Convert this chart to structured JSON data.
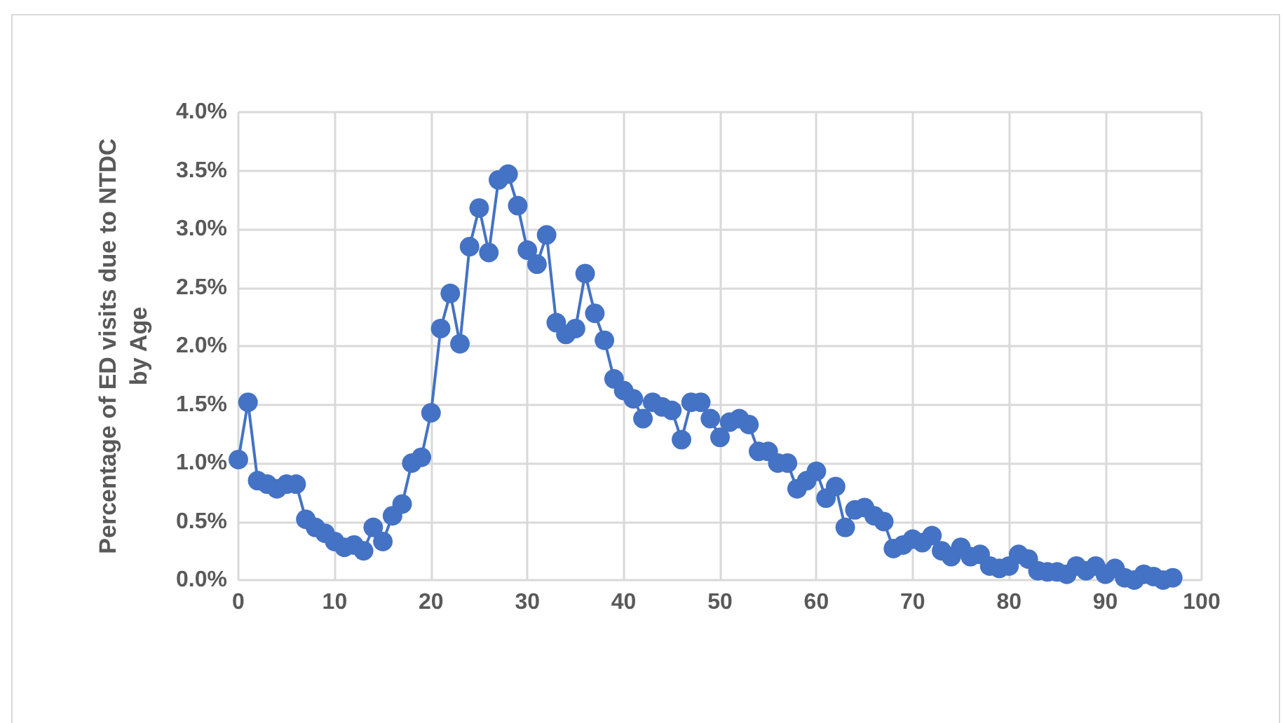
{
  "chart_data": {
    "type": "line",
    "ylabel": "Percentage of ED visits due to NTDC\nby Age",
    "x": [
      0,
      1,
      2,
      3,
      4,
      5,
      6,
      7,
      8,
      9,
      10,
      11,
      12,
      13,
      14,
      15,
      16,
      17,
      18,
      19,
      20,
      21,
      22,
      23,
      24,
      25,
      26,
      27,
      28,
      29,
      30,
      31,
      32,
      33,
      34,
      35,
      36,
      37,
      38,
      39,
      40,
      41,
      42,
      43,
      44,
      45,
      46,
      47,
      48,
      49,
      50,
      51,
      52,
      53,
      54,
      55,
      56,
      57,
      58,
      59,
      60,
      61,
      62,
      63,
      64,
      65,
      66,
      67,
      68,
      69,
      70,
      71,
      72,
      73,
      74,
      75,
      76,
      77,
      78,
      79,
      80,
      81,
      82,
      83,
      84,
      85,
      86,
      87,
      88,
      89,
      90,
      91,
      92,
      93,
      94,
      95,
      96,
      97
    ],
    "series": [
      {
        "color": "#4472c4",
        "values": [
          1.03,
          1.52,
          0.85,
          0.82,
          0.78,
          0.82,
          0.82,
          0.52,
          0.45,
          0.4,
          0.33,
          0.28,
          0.3,
          0.25,
          0.45,
          0.33,
          0.55,
          0.65,
          1.0,
          1.05,
          1.43,
          2.15,
          2.45,
          2.02,
          2.85,
          3.18,
          2.8,
          3.42,
          3.47,
          3.2,
          2.82,
          2.7,
          2.95,
          2.2,
          2.1,
          2.15,
          2.62,
          2.28,
          2.05,
          1.72,
          1.62,
          1.55,
          1.38,
          1.52,
          1.48,
          1.45,
          1.2,
          1.52,
          1.52,
          1.38,
          1.22,
          1.35,
          1.38,
          1.33,
          1.1,
          1.1,
          1.0,
          1.0,
          0.78,
          0.85,
          0.93,
          0.7,
          0.8,
          0.45,
          0.6,
          0.62,
          0.55,
          0.5,
          0.27,
          0.3,
          0.35,
          0.32,
          0.38,
          0.25,
          0.2,
          0.28,
          0.2,
          0.22,
          0.12,
          0.1,
          0.12,
          0.22,
          0.18,
          0.08,
          0.07,
          0.07,
          0.05,
          0.12,
          0.08,
          0.12,
          0.05,
          0.1,
          0.02,
          0.0,
          0.05,
          0.03,
          0.0,
          0.02
        ]
      }
    ],
    "xlim": [
      0,
      100
    ],
    "xticks": [
      0,
      10,
      20,
      30,
      40,
      50,
      60,
      70,
      80,
      90,
      100
    ],
    "ylim": [
      0,
      4
    ],
    "yticks": [
      {
        "value": 0,
        "label": "0.0%"
      },
      {
        "value": 0.5,
        "label": "0.5%"
      },
      {
        "value": 1,
        "label": "1.0%"
      },
      {
        "value": 1.5,
        "label": "1.5%"
      },
      {
        "value": 2,
        "label": "2.0%"
      },
      {
        "value": 2.5,
        "label": "2.5%"
      },
      {
        "value": 3,
        "label": "3.0%"
      },
      {
        "value": 3.5,
        "label": "3.5%"
      },
      {
        "value": 4,
        "label": "4.0%"
      }
    ],
    "grid": true,
    "marker": "circle",
    "line_style": "solid"
  }
}
